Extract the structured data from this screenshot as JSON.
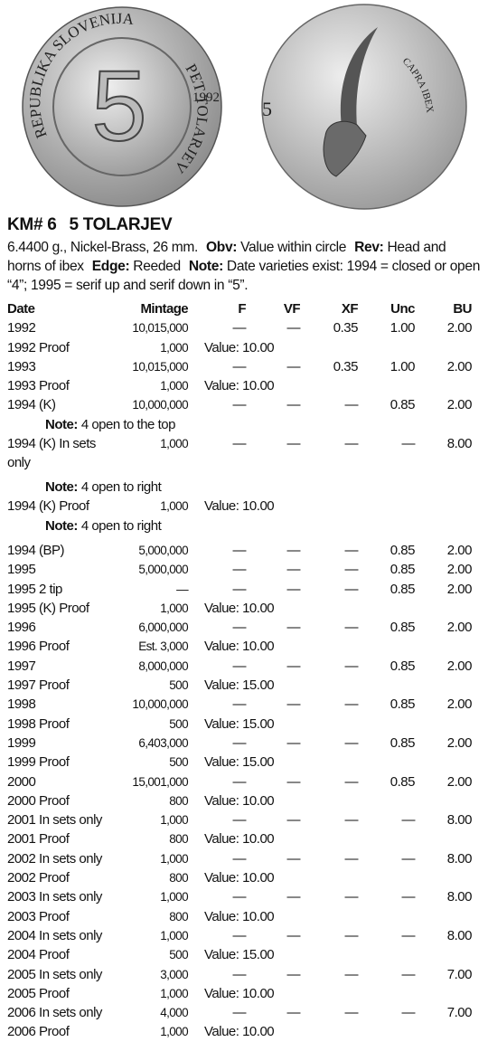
{
  "coins": {
    "obverse": {
      "legend_top": "REPUBLIKA SLOVENIJA",
      "legend_right": "PET TOLARJEV",
      "year": "1992",
      "value": "5"
    },
    "reverse": {
      "value": "5",
      "legend": "CAPRA IBEX"
    }
  },
  "header": {
    "number": "KM# 6",
    "title": "5 TOLARJEV"
  },
  "description": [
    {
      "text": "6.4400 g., Nickel-Brass, 26 mm."
    },
    {
      "label": "Obv:",
      "text": "Value within circle"
    },
    {
      "label": "Rev:",
      "text": "Head and horns of ibex"
    },
    {
      "label": "Edge:",
      "text": "Reeded"
    },
    {
      "label": "Note:",
      "text": "Date varieties exist: 1994 = closed or open “4”; 1995 = serif up and serif down in “5”."
    }
  ],
  "table": {
    "columns": [
      "Date",
      "Mintage",
      "F",
      "VF",
      "XF",
      "Unc",
      "BU"
    ],
    "rows": [
      {
        "date": "1992",
        "mintage": "10,015,000",
        "prices": [
          "—",
          "—",
          "0.35",
          "1.00",
          "2.00"
        ]
      },
      {
        "date": "1992 Proof",
        "mintage": "1,000",
        "value": "Value: 10.00"
      },
      {
        "date": "1993",
        "mintage": "10,015,000",
        "prices": [
          "—",
          "—",
          "0.35",
          "1.00",
          "2.00"
        ]
      },
      {
        "date": "1993 Proof",
        "mintage": "1,000",
        "value": "Value: 10.00"
      },
      {
        "date": "1994 (K)",
        "mintage": "10,000,000",
        "prices": [
          "—",
          "—",
          "—",
          "0.85",
          "2.00"
        ],
        "note_label": "Note:",
        "note": "4 open to the top"
      },
      {
        "date": "1994 (K) In sets only",
        "mintage": "1,000",
        "prices": [
          "—",
          "—",
          "—",
          "—",
          "8.00"
        ],
        "note_label": "Note:",
        "note": "4 open to right"
      },
      {
        "date": "1994 (K) Proof",
        "mintage": "1,000",
        "value": "Value: 10.00",
        "note_label": "Note:",
        "note": "4 open to right"
      },
      {
        "date": "1994 (BP)",
        "mintage": "5,000,000",
        "prices": [
          "—",
          "—",
          "—",
          "0.85",
          "2.00"
        ]
      },
      {
        "date": "1995",
        "mintage": "5,000,000",
        "prices": [
          "—",
          "—",
          "—",
          "0.85",
          "2.00"
        ]
      },
      {
        "date": "1995 2 tip",
        "mintage": "—",
        "prices": [
          "—",
          "—",
          "—",
          "0.85",
          "2.00"
        ]
      },
      {
        "date": "1995 (K) Proof",
        "mintage": "1,000",
        "value": "Value: 10.00"
      },
      {
        "date": "1996",
        "mintage": "6,000,000",
        "prices": [
          "—",
          "—",
          "—",
          "0.85",
          "2.00"
        ]
      },
      {
        "date": "1996 Proof",
        "mintage": "Est. 3,000",
        "value": "Value: 10.00"
      },
      {
        "date": "1997",
        "mintage": "8,000,000",
        "prices": [
          "—",
          "—",
          "—",
          "0.85",
          "2.00"
        ]
      },
      {
        "date": "1997 Proof",
        "mintage": "500",
        "value": "Value: 15.00"
      },
      {
        "date": "1998",
        "mintage": "10,000,000",
        "prices": [
          "—",
          "—",
          "—",
          "0.85",
          "2.00"
        ]
      },
      {
        "date": "1998 Proof",
        "mintage": "500",
        "value": "Value: 15.00"
      },
      {
        "date": "1999",
        "mintage": "6,403,000",
        "prices": [
          "—",
          "—",
          "—",
          "0.85",
          "2.00"
        ]
      },
      {
        "date": "1999 Proof",
        "mintage": "500",
        "value": "Value: 15.00"
      },
      {
        "date": "2000",
        "mintage": "15,001,000",
        "prices": [
          "—",
          "—",
          "—",
          "0.85",
          "2.00"
        ]
      },
      {
        "date": "2000 Proof",
        "mintage": "800",
        "value": "Value: 10.00"
      },
      {
        "date": "2001 In sets only",
        "mintage": "1,000",
        "prices": [
          "—",
          "—",
          "—",
          "—",
          "8.00"
        ]
      },
      {
        "date": "2001 Proof",
        "mintage": "800",
        "value": "Value: 10.00"
      },
      {
        "date": "2002 In sets only",
        "mintage": "1,000",
        "prices": [
          "—",
          "—",
          "—",
          "—",
          "8.00"
        ]
      },
      {
        "date": "2002 Proof",
        "mintage": "800",
        "value": "Value: 10.00"
      },
      {
        "date": "2003 In sets only",
        "mintage": "1,000",
        "prices": [
          "—",
          "—",
          "—",
          "—",
          "8.00"
        ]
      },
      {
        "date": "2003 Proof",
        "mintage": "800",
        "value": "Value: 10.00"
      },
      {
        "date": "2004 In sets only",
        "mintage": "1,000",
        "prices": [
          "—",
          "—",
          "—",
          "—",
          "8.00"
        ]
      },
      {
        "date": "2004 Proof",
        "mintage": "500",
        "value": "Value: 15.00"
      },
      {
        "date": "2005 In sets only",
        "mintage": "3,000",
        "prices": [
          "—",
          "—",
          "—",
          "—",
          "7.00"
        ]
      },
      {
        "date": "2005 Proof",
        "mintage": "1,000",
        "value": "Value: 10.00"
      },
      {
        "date": "2006 In sets only",
        "mintage": "4,000",
        "prices": [
          "—",
          "—",
          "—",
          "—",
          "7.00"
        ]
      },
      {
        "date": "2006 Proof",
        "mintage": "1,000",
        "value": "Value: 10.00"
      }
    ]
  }
}
